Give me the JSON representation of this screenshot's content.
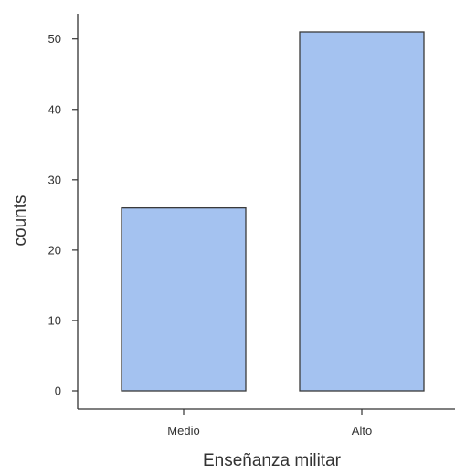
{
  "chart_data": {
    "type": "bar",
    "categories": [
      "Medio",
      "Alto"
    ],
    "values": [
      26,
      51
    ],
    "xlabel": "Enseñanza militar",
    "ylabel": "counts",
    "ylim": [
      0,
      51
    ],
    "yticks": [
      0,
      10,
      20,
      30,
      40,
      50
    ],
    "grid": false,
    "legend": "none",
    "colors": {
      "bar_fill": "#a4c2f0",
      "bar_stroke": "#3a3a3a",
      "axis": "#333333",
      "text": "#333333"
    }
  }
}
